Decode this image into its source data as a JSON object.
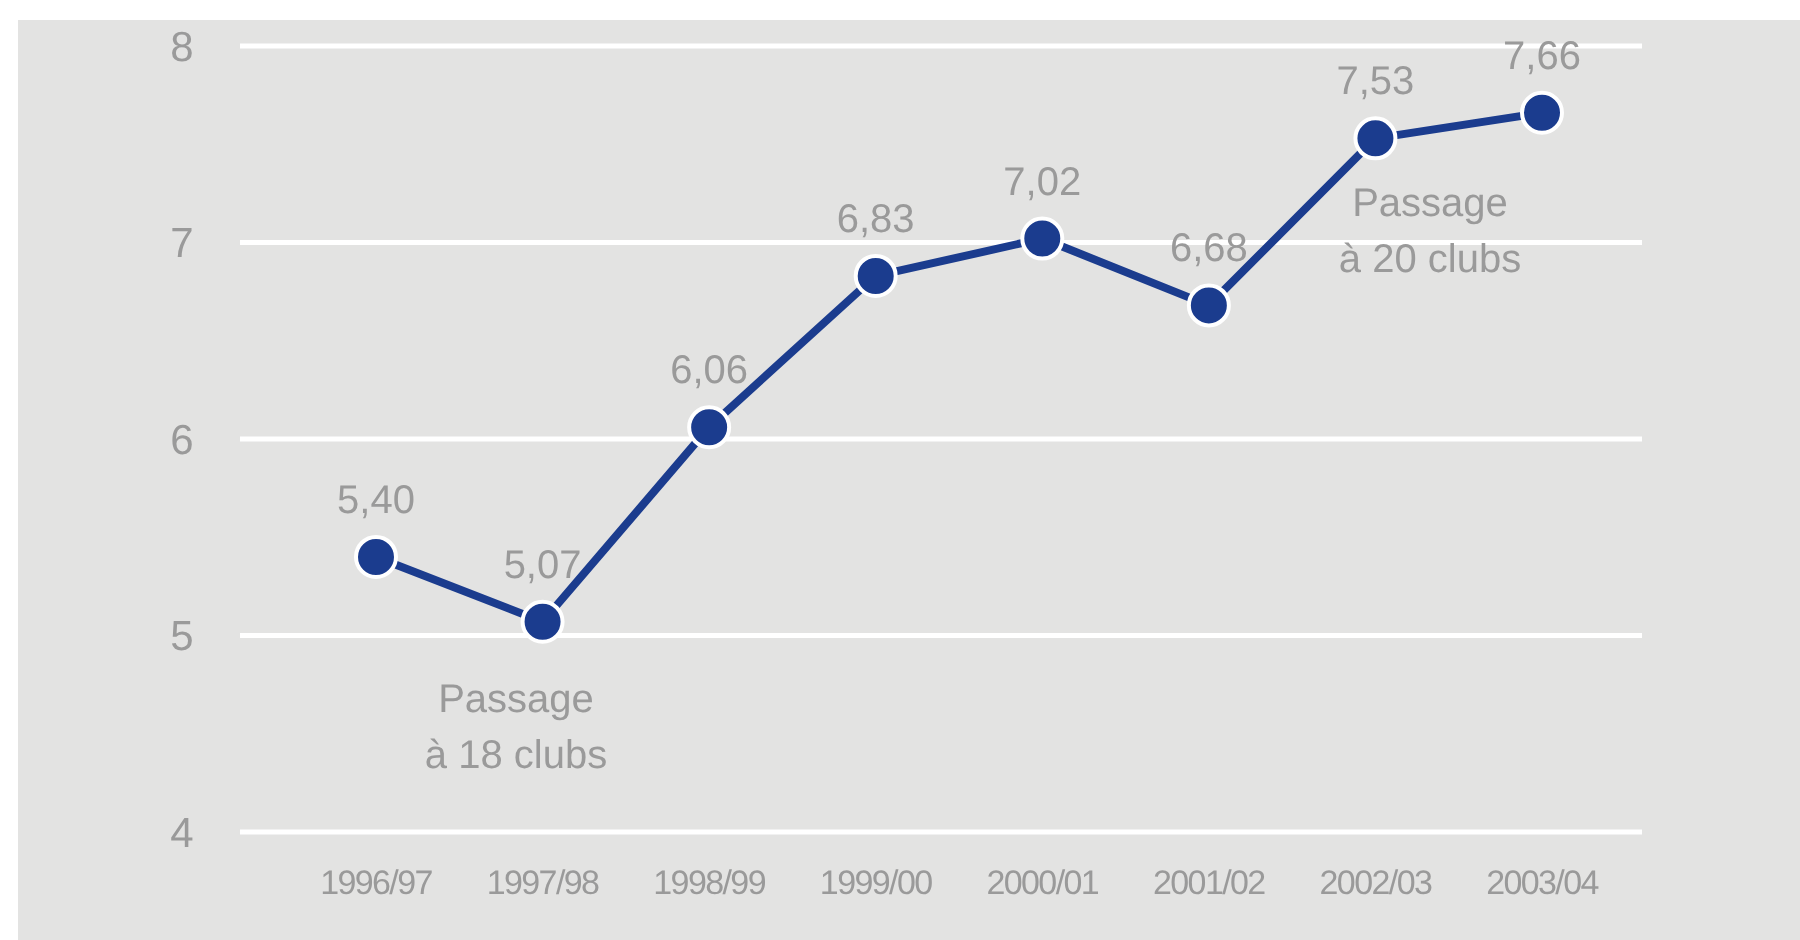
{
  "chart_data": {
    "type": "line",
    "categories": [
      "1996/97",
      "1997/98",
      "1998/99",
      "1999/00",
      "2000/01",
      "2001/02",
      "2002/03",
      "2003/04"
    ],
    "series": [
      {
        "color": "#1b3c8e",
        "values": [
          5.4,
          5.07,
          6.06,
          6.83,
          7.02,
          6.68,
          7.53,
          7.66
        ],
        "value_labels": [
          "5,40",
          "5,07",
          "6,06",
          "6,83",
          "7,02",
          "6,68",
          "7,53",
          "7,66"
        ]
      }
    ],
    "ylim": [
      4,
      8
    ],
    "yticks": [
      4,
      5,
      6,
      7,
      8
    ],
    "grid": "y",
    "marker": "circle",
    "line_style": "solid",
    "annotations": [
      "Passage\nà 18 clubs",
      "Passage\nà 20 clubs"
    ]
  }
}
